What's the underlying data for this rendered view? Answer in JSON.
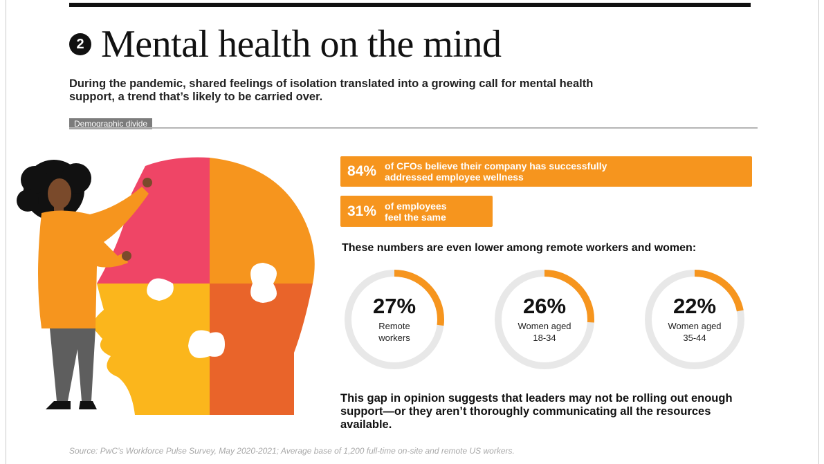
{
  "header": {
    "number": "2",
    "title": "Mental health on the mind",
    "subtitle": "During the pandemic, shared feelings of isolation translated into a growing call for mental health support, a trend that’s likely to be carried over."
  },
  "section": {
    "label": "Demographic divide"
  },
  "stats": [
    {
      "value": "84%",
      "line1": "of CFOs believe their company has successfully",
      "line2": "addressed employee wellness"
    },
    {
      "value": "31%",
      "line1": "of employees",
      "line2": "feel the same"
    }
  ],
  "lower_heading": "These numbers are even lower among remote workers and women:",
  "rings": [
    {
      "value": "27%",
      "fraction": 0.27,
      "label1": "Remote",
      "label2": "workers"
    },
    {
      "value": "26%",
      "fraction": 0.26,
      "label1": "Women aged",
      "label2": "18-34"
    },
    {
      "value": "22%",
      "fraction": 0.22,
      "label1": "Women aged",
      "label2": "35-44"
    }
  ],
  "conclusion": "This gap in opinion suggests that leaders may not be rolling out enough support—or they aren’t thoroughly communicating all the resources available.",
  "source": "Source: PwC’s Workforce Pulse Survey, May 2020-2021; Average base of 1,200 full-time on-site and remote US workers.",
  "colors": {
    "orange": "#f6951e",
    "pink": "#ef4566",
    "yellow": "#fbb61c",
    "dark_orange": "#e9642a",
    "ring_track": "#e8e8e8"
  }
}
